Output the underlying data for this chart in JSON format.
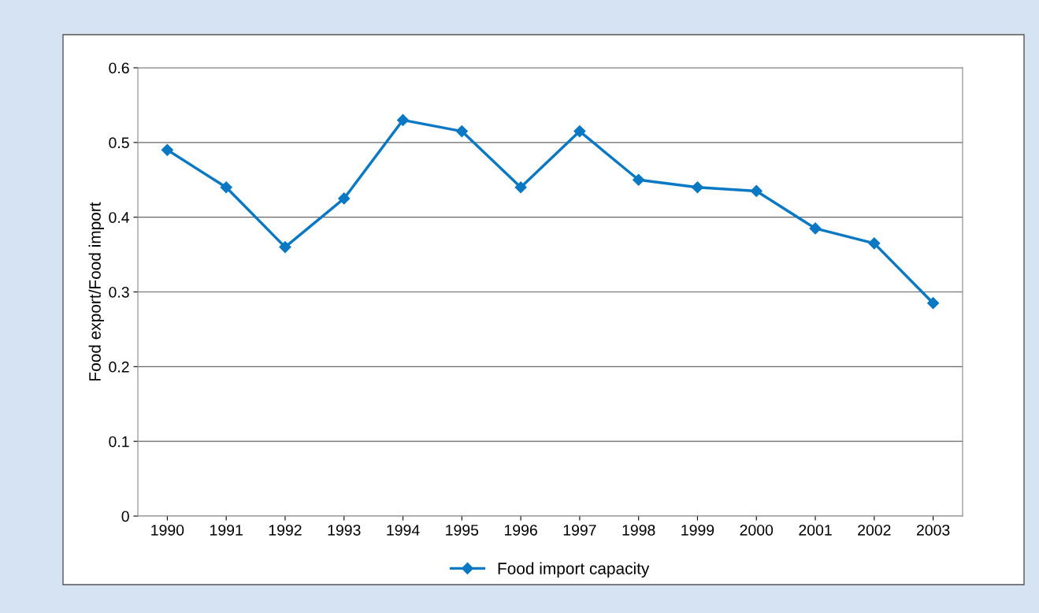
{
  "chart_data": {
    "type": "line",
    "ylabel": "Food export/Food import",
    "categories": [
      "1990",
      "1991",
      "1992",
      "1993",
      "1994",
      "1995",
      "1996",
      "1997",
      "1998",
      "1999",
      "2000",
      "2001",
      "2002",
      "2003"
    ],
    "series": [
      {
        "name": "Food import capacity",
        "color": "#0a78c3",
        "values": [
          0.49,
          0.44,
          0.36,
          0.425,
          0.53,
          0.515,
          0.44,
          0.515,
          0.45,
          0.44,
          0.435,
          0.385,
          0.365,
          0.285
        ]
      }
    ],
    "ylim": [
      0,
      0.6
    ],
    "yticks": [
      {
        "value": 0,
        "label": "0"
      },
      0.1,
      0.2,
      0.3,
      0.4,
      0.5,
      0.6
    ],
    "grid": "y",
    "legend": "bottom",
    "marker": "diamond",
    "line_style": "solid"
  }
}
